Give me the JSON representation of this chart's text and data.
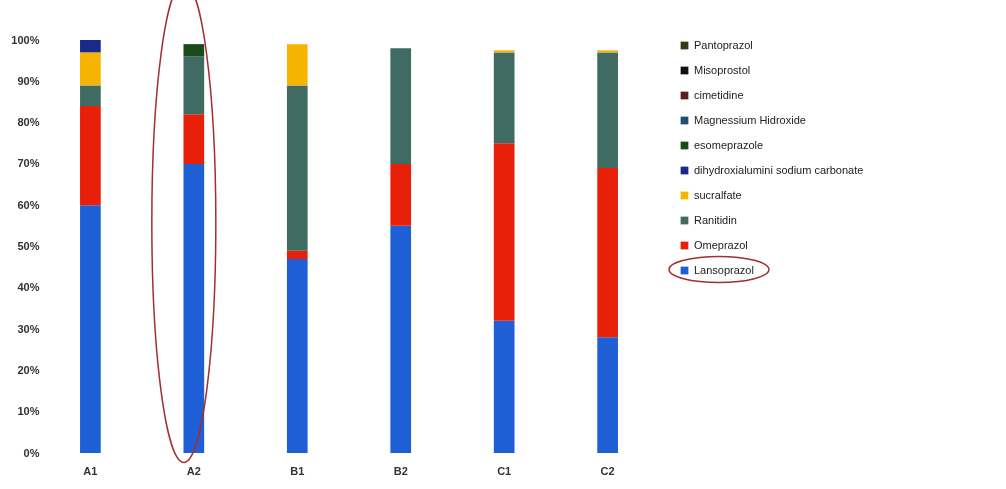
{
  "chart_data": {
    "type": "bar",
    "stacked": true,
    "categories": [
      "A1",
      "A2",
      "B1",
      "B2",
      "C1",
      "C2"
    ],
    "series": [
      {
        "name": "Lansoprazol",
        "color": "#1f5fd6",
        "values": [
          60,
          70,
          47,
          55,
          32,
          28
        ]
      },
      {
        "name": "Omeprazol",
        "color": "#e8200a",
        "values": [
          24,
          12,
          2,
          15,
          43,
          41
        ]
      },
      {
        "name": "Ranitidin",
        "color": "#3f6b63",
        "values": [
          5,
          14,
          40,
          28,
          22,
          28
        ]
      },
      {
        "name": "sucralfate",
        "color": "#f5b400",
        "values": [
          8,
          0,
          10,
          0,
          0.5,
          0.5
        ]
      },
      {
        "name": "dihydroxialumini sodium carbonate",
        "color": "#1a2a8a",
        "values": [
          3,
          0,
          0,
          0,
          0,
          0
        ]
      },
      {
        "name": "esomeprazole",
        "color": "#1a4a1a",
        "values": [
          0,
          3,
          0,
          0,
          0,
          0
        ]
      },
      {
        "name": "Magnessium Hidroxide",
        "color": "#1f4f6f",
        "values": [
          0,
          0,
          0,
          0,
          0,
          0
        ]
      },
      {
        "name": "cimetidine",
        "color": "#5a2020",
        "values": [
          0,
          0,
          0,
          0,
          0,
          0
        ]
      },
      {
        "name": "Misoprostol",
        "color": "#111111",
        "values": [
          0,
          0,
          0,
          0,
          0,
          0
        ]
      },
      {
        "name": "Pantoprazol",
        "color": "#3a3a1a",
        "values": [
          0,
          0,
          0,
          0,
          0,
          0
        ]
      }
    ],
    "ylim": [
      0,
      100
    ],
    "yticks": [
      {
        "value": 0,
        "label": "0%"
      },
      {
        "value": 10,
        "label": "10%"
      },
      {
        "value": 20,
        "label": "20%"
      },
      {
        "value": 30,
        "label": "30%"
      },
      {
        "value": 40,
        "label": "40%"
      },
      {
        "value": 50,
        "label": "50%"
      },
      {
        "value": 60,
        "label": "60%"
      },
      {
        "value": 70,
        "label": "70%"
      },
      {
        "value": 80,
        "label": "80%"
      },
      {
        "value": 90,
        "label": "90%"
      },
      {
        "value": 100,
        "label": "100%"
      }
    ],
    "grid": false,
    "legend": "right"
  }
}
